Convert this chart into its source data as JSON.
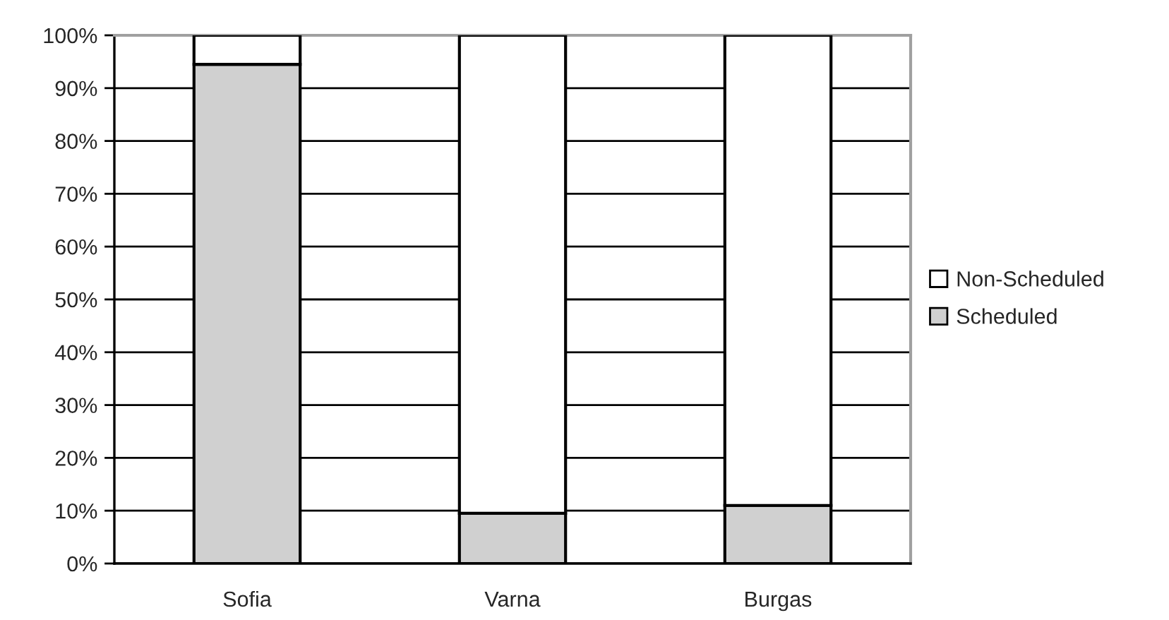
{
  "chart_data": {
    "type": "bar",
    "stacked": true,
    "categories": [
      "Sofia",
      "Varna",
      "Burgas"
    ],
    "series": [
      {
        "name": "Scheduled",
        "color": "#d0d0d0",
        "values": [
          94.5,
          9.5,
          11
        ]
      },
      {
        "name": "Non-Scheduled",
        "color": "#ffffff",
        "values": [
          5.5,
          90.5,
          89
        ]
      }
    ],
    "ylim": [
      0,
      100
    ],
    "yticks": [
      {
        "value": 0,
        "label": "0%"
      },
      {
        "value": 10,
        "label": "10%"
      },
      {
        "value": 20,
        "label": "20%"
      },
      {
        "value": 30,
        "label": "30%"
      },
      {
        "value": 40,
        "label": "40%"
      },
      {
        "value": 50,
        "label": "50%"
      },
      {
        "value": 60,
        "label": "60%"
      },
      {
        "value": 70,
        "label": "70%"
      },
      {
        "value": 80,
        "label": "80%"
      },
      {
        "value": 90,
        "label": "90%"
      },
      {
        "value": 100,
        "label": "100%"
      }
    ],
    "grid": "y",
    "legend": "right"
  }
}
